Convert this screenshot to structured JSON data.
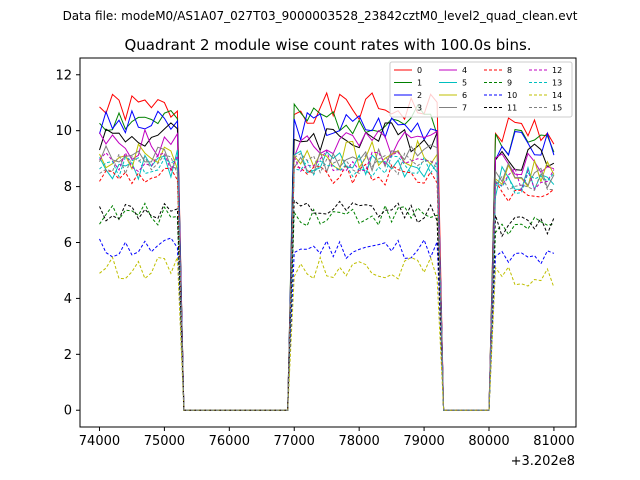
{
  "figure": {
    "suptitle": "Data file: modeM0/AS1A07_027T03_9000003528_23842cztM0_level2_quad_clean.evt",
    "title": "Quadrant 2 module wise count rates with 100.0s bins.",
    "x_offset_label": "+3.202e8"
  },
  "chart_data": {
    "type": "line",
    "title": "Quadrant 2 module wise count rates with 100.0s bins.",
    "xlabel": "",
    "ylabel": "",
    "x_offset": 320200000,
    "xlim": [
      73700,
      81340
    ],
    "ylim": [
      -0.6,
      12.6
    ],
    "xticks": [
      74000,
      75000,
      76000,
      77000,
      78000,
      79000,
      80000,
      81000
    ],
    "xtick_labels": [
      "74000",
      "75000",
      "76000",
      "77000",
      "78000",
      "79000",
      "80000",
      "81000"
    ],
    "yticks": [
      0,
      2,
      4,
      6,
      8,
      10,
      12
    ],
    "ytick_labels": [
      "0",
      "2",
      "4",
      "6",
      "8",
      "10",
      "12"
    ],
    "grid": false,
    "legend_position": "top-right",
    "legend_columns": 4,
    "bin_size_s": 100,
    "good_intervals": [
      [
        74000,
        75200
      ],
      [
        77000,
        79200
      ],
      [
        80100,
        81000
      ]
    ],
    "gap_value": 0,
    "series": [
      {
        "name": "0",
        "color": "#ff0000",
        "dash": false,
        "level": 10.8,
        "seed": 1
      },
      {
        "name": "1",
        "color": "#008000",
        "dash": false,
        "level": 10.4,
        "seed": 2
      },
      {
        "name": "2",
        "color": "#0000ff",
        "dash": false,
        "level": 10.2,
        "seed": 3
      },
      {
        "name": "3",
        "color": "#000000",
        "dash": false,
        "level": 9.8,
        "seed": 4
      },
      {
        "name": "4",
        "color": "#c000c0",
        "dash": false,
        "level": 9.5,
        "seed": 5
      },
      {
        "name": "5",
        "color": "#00bfbf",
        "dash": false,
        "level": 8.8,
        "seed": 6
      },
      {
        "name": "6",
        "color": "#bfbf00",
        "dash": false,
        "level": 9.1,
        "seed": 7
      },
      {
        "name": "7",
        "color": "#808080",
        "dash": false,
        "level": 9.0,
        "seed": 8
      },
      {
        "name": "8",
        "color": "#ff0000",
        "dash": true,
        "level": 8.4,
        "seed": 9
      },
      {
        "name": "9",
        "color": "#008000",
        "dash": true,
        "level": 7.0,
        "seed": 10
      },
      {
        "name": "10",
        "color": "#0000ff",
        "dash": true,
        "level": 5.8,
        "seed": 11
      },
      {
        "name": "11",
        "color": "#000000",
        "dash": true,
        "level": 7.1,
        "seed": 12
      },
      {
        "name": "12",
        "color": "#c000c0",
        "dash": true,
        "level": 8.9,
        "seed": 13
      },
      {
        "name": "13",
        "color": "#00bfbf",
        "dash": true,
        "level": 8.7,
        "seed": 14
      },
      {
        "name": "14",
        "color": "#bfbf00",
        "dash": true,
        "level": 5.1,
        "seed": 15
      },
      {
        "name": "15",
        "color": "#808080",
        "dash": true,
        "level": 8.8,
        "seed": 16
      }
    ]
  }
}
